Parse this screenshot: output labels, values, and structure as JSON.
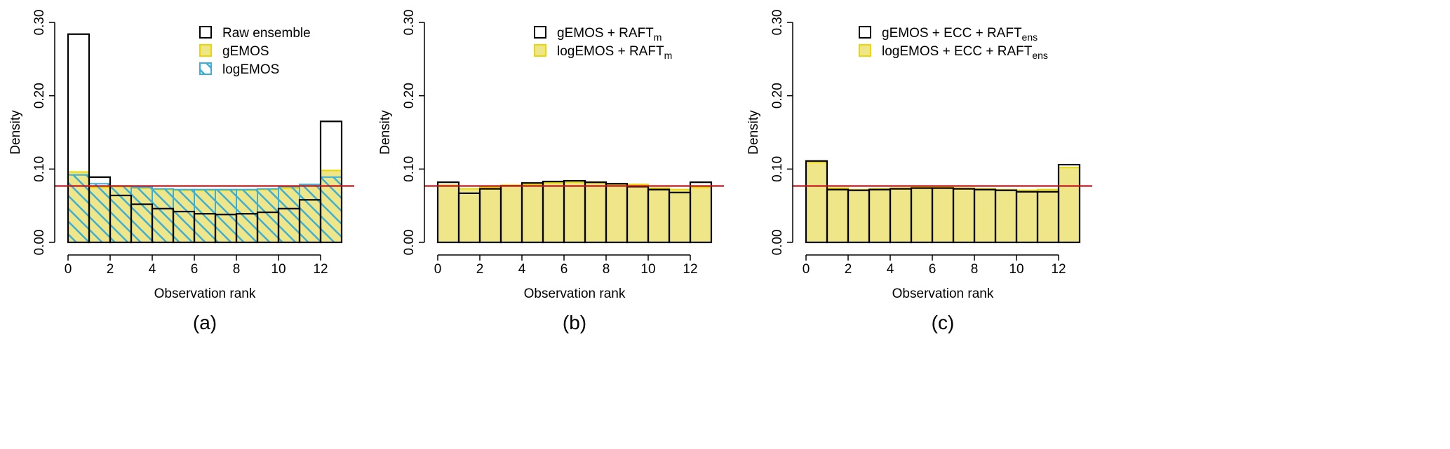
{
  "colors": {
    "yellow_fill": "#EFE68A",
    "yellow_line": "#E8D800",
    "blue": "#3AAFD9",
    "black": "#000000",
    "reference": "#C0161C"
  },
  "chart_data": [
    {
      "type": "bar",
      "caption": "(a)",
      "xlabel": "Observation rank",
      "ylabel": "Density",
      "xlim": [
        0,
        13
      ],
      "ylim": [
        0,
        0.3
      ],
      "xticks": [
        "0",
        "2",
        "4",
        "6",
        "8",
        "10",
        "12"
      ],
      "yticks": [
        "0.00",
        "0.10",
        "0.20",
        "0.30"
      ],
      "reference_line": 0.0769,
      "legend": "top-right",
      "series": [
        {
          "name": "gEMOS",
          "sub": "",
          "style": "yellow",
          "values": [
            0.096,
            0.075,
            0.076,
            0.074,
            0.072,
            0.071,
            0.071,
            0.071,
            0.071,
            0.072,
            0.074,
            0.077,
            0.098
          ]
        },
        {
          "name": "logEMOS",
          "sub": "",
          "style": "hatched",
          "values": [
            0.092,
            0.08,
            0.077,
            0.075,
            0.073,
            0.072,
            0.072,
            0.072,
            0.072,
            0.073,
            0.076,
            0.079,
            0.089
          ]
        },
        {
          "name": "Raw ensemble",
          "sub": "",
          "style": "outline",
          "values": [
            0.284,
            0.089,
            0.064,
            0.052,
            0.046,
            0.042,
            0.039,
            0.038,
            0.039,
            0.041,
            0.046,
            0.058,
            0.165
          ]
        }
      ],
      "legend_order": [
        2,
        0,
        1
      ]
    },
    {
      "type": "bar",
      "caption": "(b)",
      "xlabel": "Observation rank",
      "ylabel": "Density",
      "xlim": [
        0,
        13
      ],
      "ylim": [
        0,
        0.3
      ],
      "xticks": [
        "0",
        "2",
        "4",
        "6",
        "8",
        "10",
        "12"
      ],
      "yticks": [
        "0.00",
        "0.10",
        "0.20",
        "0.30"
      ],
      "reference_line": 0.0769,
      "legend": "top-right",
      "series": [
        {
          "name": "logEMOS + RAFT",
          "sub": "m",
          "style": "yellow",
          "values": [
            0.078,
            0.073,
            0.075,
            0.078,
            0.079,
            0.081,
            0.082,
            0.081,
            0.079,
            0.079,
            0.074,
            0.072,
            0.075
          ]
        },
        {
          "name": "gEMOS + RAFT",
          "sub": "m",
          "style": "outline",
          "values": [
            0.082,
            0.067,
            0.073,
            0.077,
            0.081,
            0.083,
            0.084,
            0.082,
            0.08,
            0.076,
            0.072,
            0.068,
            0.082
          ]
        }
      ],
      "legend_order": [
        1,
        0
      ]
    },
    {
      "type": "bar",
      "caption": "(c)",
      "xlabel": "Observation rank",
      "ylabel": "Density",
      "xlim": [
        0,
        13
      ],
      "ylim": [
        0,
        0.3
      ],
      "xticks": [
        "0",
        "2",
        "4",
        "6",
        "8",
        "10",
        "12"
      ],
      "yticks": [
        "0.00",
        "0.10",
        "0.20",
        "0.30"
      ],
      "reference_line": 0.0769,
      "legend": "top-right",
      "series": [
        {
          "name": "logEMOS + ECC + RAFT",
          "sub": "ens",
          "style": "yellow",
          "values": [
            0.109,
            0.074,
            0.072,
            0.073,
            0.074,
            0.075,
            0.075,
            0.074,
            0.073,
            0.072,
            0.071,
            0.072,
            0.102
          ]
        },
        {
          "name": "gEMOS + ECC + RAFT",
          "sub": "ens",
          "style": "outline",
          "values": [
            0.111,
            0.072,
            0.071,
            0.072,
            0.073,
            0.074,
            0.074,
            0.073,
            0.072,
            0.071,
            0.069,
            0.069,
            0.106
          ]
        }
      ],
      "legend_order": [
        1,
        0
      ]
    }
  ]
}
